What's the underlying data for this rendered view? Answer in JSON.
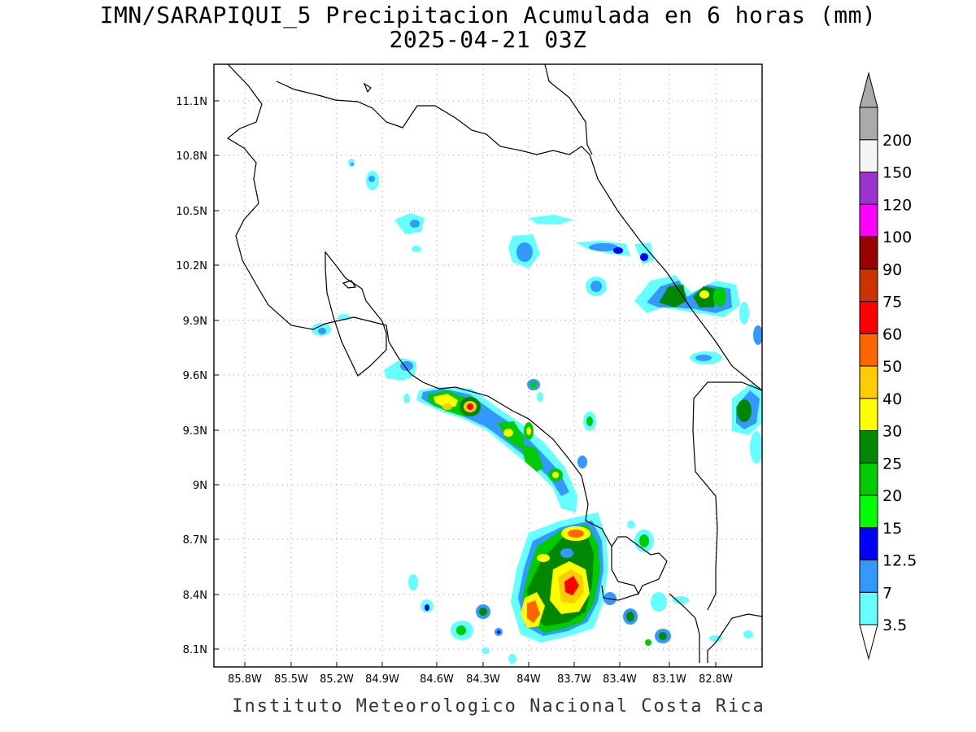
{
  "title": {
    "line1": "IMN/SARAPIQUI_5 Precipitacion Acumulada en 6 horas (mm)",
    "line2": "2025-04-21 03Z"
  },
  "footer": "Instituto Meteorologico Nacional Costa Rica",
  "axes": {
    "lon_ticks": [
      "85.8W",
      "85.5W",
      "85.2W",
      "84.9W",
      "84.6W",
      "84.3W",
      "84W",
      "83.7W",
      "83.4W",
      "83.1W",
      "82.8W"
    ],
    "lat_ticks": [
      "11.1N",
      "10.8N",
      "10.5N",
      "10.2N",
      "9.9N",
      "9.6N",
      "9.3N",
      "9N",
      "8.7N",
      "8.4N",
      "8.1N"
    ],
    "grid": "dotted"
  },
  "legend": {
    "labels": [
      "3.5",
      "7",
      "12.5",
      "15",
      "20",
      "25",
      "30",
      "40",
      "50",
      "60",
      "75",
      "90",
      "100",
      "120",
      "150",
      "200"
    ],
    "colors": [
      "#66ffff",
      "#3399ff",
      "#0000ff",
      "#00ff00",
      "#00cc00",
      "#008800",
      "#ffff00",
      "#ffcc00",
      "#ff6600",
      "#ff0000",
      "#cc3300",
      "#990000",
      "#ff00ff",
      "#9933cc",
      "#f5f5f5",
      "#aaaaaa"
    ],
    "overflow_color": "#aaaaaa",
    "underflow_color": "#ffffff"
  }
}
